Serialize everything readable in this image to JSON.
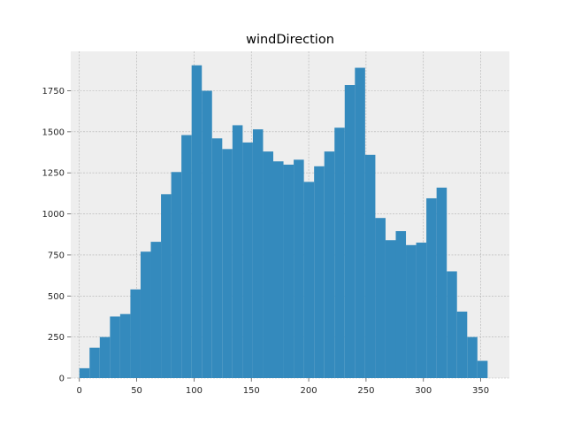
{
  "chart_data": {
    "type": "bar",
    "title": "windDirection",
    "xlabel": "",
    "ylabel": "",
    "xlim": [
      -7.5,
      375
    ],
    "ylim": [
      0,
      1990
    ],
    "xticks": [
      0,
      50,
      100,
      150,
      200,
      250,
      300,
      350
    ],
    "yticks": [
      0,
      250,
      500,
      750,
      1000,
      1250,
      1500,
      1750
    ],
    "grid": true,
    "bar_color": "#348ABD",
    "plot_background": "#EEEEEE",
    "bins": {
      "start": 0,
      "width": 8.9,
      "values": [
        60,
        185,
        250,
        375,
        390,
        540,
        770,
        830,
        1120,
        1255,
        1480,
        1905,
        1750,
        1460,
        1395,
        1540,
        1435,
        1515,
        1380,
        1320,
        1300,
        1330,
        1195,
        1290,
        1380,
        1525,
        1785,
        1890,
        1360,
        975,
        840,
        895,
        810,
        825,
        1095,
        1160,
        650,
        405,
        250,
        105
      ]
    }
  }
}
